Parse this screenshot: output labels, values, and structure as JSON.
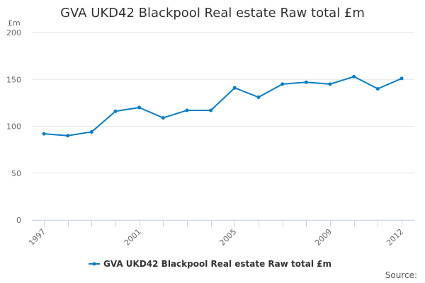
{
  "chart_data": {
    "type": "line",
    "title": "GVA UKD42 Blackpool Real estate Raw total £m",
    "ylabel": "£m",
    "xlabel": "",
    "ylim": [
      0,
      200
    ],
    "yticks": [
      "0",
      "50",
      "100",
      "150",
      "200"
    ],
    "x": [
      1997,
      1998,
      1999,
      2000,
      2001,
      2002,
      2003,
      2004,
      2005,
      2006,
      2007,
      2008,
      2009,
      2010,
      2011,
      2012
    ],
    "xtick_labels": [
      "1997",
      "2001",
      "2005",
      "2009",
      "2012"
    ],
    "grid": true,
    "legend_position": "bottom",
    "series": [
      {
        "name": "GVA UKD42 Blackpool Real estate Raw total £m",
        "color": "#0a7cc4",
        "values": [
          92,
          90,
          94,
          116,
          120,
          109,
          117,
          117,
          141,
          131,
          145,
          147,
          145,
          153,
          140,
          151
        ]
      }
    ]
  },
  "source_label": "Source:"
}
